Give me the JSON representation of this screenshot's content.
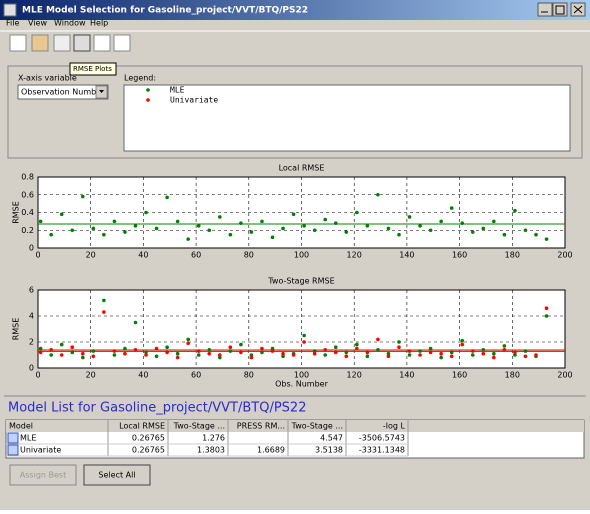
{
  "window": {
    "title": "MLE Model Selection for Gasoline_project/VVT/BTQ/PS22",
    "menus": [
      "File",
      "View",
      "Window",
      "Help"
    ],
    "tooltip": "RMSE Plots"
  },
  "controls": {
    "x_axis_label": "X-axis variable",
    "x_axis_value": "Observation Number",
    "legend_label": "Legend:"
  },
  "chart_data": [
    {
      "type": "scatter",
      "title": "Local RMSE",
      "ylabel": "RMSE",
      "xlim": [
        0,
        200
      ],
      "xticks": [
        0,
        20,
        40,
        60,
        80,
        100,
        120,
        140,
        160,
        180,
        200
      ],
      "ylim": [
        0,
        0.8
      ],
      "yticks": [
        0,
        0.2,
        0.4,
        0.6,
        0.8
      ],
      "grid": true,
      "reference_lines": [
        {
          "value": 0.27,
          "color": "#008000"
        }
      ],
      "x": [
        1,
        5,
        9,
        13,
        17,
        21,
        25,
        29,
        33,
        37,
        41,
        45,
        49,
        53,
        57,
        61,
        65,
        69,
        73,
        77,
        81,
        85,
        89,
        93,
        97,
        101,
        105,
        109,
        113,
        117,
        121,
        125,
        129,
        133,
        137,
        141,
        145,
        149,
        153,
        157,
        161,
        165,
        169,
        173,
        177,
        181,
        185,
        189,
        193
      ],
      "series": [
        {
          "name": "MLE",
          "color": "#008000",
          "values": [
            0.3,
            0.15,
            0.38,
            0.2,
            0.58,
            0.22,
            0.15,
            0.3,
            0.18,
            0.25,
            0.4,
            0.22,
            0.57,
            0.3,
            0.1,
            0.25,
            0.2,
            0.35,
            0.15,
            0.28,
            0.18,
            0.3,
            0.12,
            0.22,
            0.38,
            0.25,
            0.2,
            0.32,
            0.28,
            0.18,
            0.4,
            0.25,
            0.6,
            0.22,
            0.15,
            0.35,
            0.25,
            0.2,
            0.3,
            0.45,
            0.28,
            0.18,
            0.22,
            0.3,
            0.15,
            0.42,
            0.2,
            0.15,
            0.1
          ]
        }
      ]
    },
    {
      "type": "scatter",
      "title": "Two-Stage RMSE",
      "ylabel": "RMSE",
      "xlabel": "Obs. Number",
      "xlim": [
        0,
        200
      ],
      "xticks": [
        0,
        20,
        40,
        60,
        80,
        100,
        120,
        140,
        160,
        180,
        200
      ],
      "ylim": [
        0,
        6
      ],
      "yticks": [
        0,
        2,
        4,
        6
      ],
      "grid": true,
      "reference_lines": [
        {
          "value": 1.276,
          "color": "#008000"
        },
        {
          "value": 1.3803,
          "color": "#ff0000"
        }
      ],
      "x": [
        1,
        5,
        9,
        13,
        17,
        21,
        25,
        29,
        33,
        37,
        41,
        45,
        49,
        53,
        57,
        61,
        65,
        69,
        73,
        77,
        81,
        85,
        89,
        93,
        97,
        101,
        105,
        109,
        113,
        117,
        121,
        125,
        129,
        133,
        137,
        141,
        145,
        149,
        153,
        157,
        161,
        165,
        169,
        173,
        177,
        181,
        185,
        189,
        193
      ],
      "series": [
        {
          "name": "MLE",
          "color": "#008000",
          "values": [
            1.5,
            1.0,
            1.8,
            1.2,
            0.8,
            1.3,
            5.2,
            1.0,
            1.5,
            3.5,
            1.2,
            0.9,
            1.6,
            1.1,
            2.2,
            1.0,
            1.4,
            0.8,
            1.3,
            1.8,
            1.0,
            1.2,
            1.5,
            0.9,
            1.1,
            2.5,
            1.3,
            1.0,
            1.6,
            1.2,
            1.8,
            0.9,
            1.4,
            1.1,
            2.0,
            1.0,
            1.3,
            1.5,
            0.8,
            1.2,
            2.1,
            1.0,
            1.4,
            1.1,
            1.7,
            1.0,
            1.3,
            0.9,
            4.0
          ]
        },
        {
          "name": "Univariate",
          "color": "#ff0000",
          "values": [
            1.2,
            1.4,
            1.0,
            1.6,
            1.1,
            0.9,
            4.3,
            1.3,
            1.1,
            1.4,
            1.0,
            1.5,
            1.2,
            0.8,
            1.9,
            1.3,
            1.1,
            1.0,
            1.6,
            1.2,
            0.8,
            1.5,
            1.3,
            1.1,
            1.0,
            2.0,
            1.1,
            1.4,
            1.2,
            0.9,
            1.5,
            1.2,
            2.2,
            0.9,
            1.6,
            1.3,
            1.0,
            1.2,
            1.1,
            0.9,
            1.8,
            1.3,
            1.1,
            0.8,
            1.4,
            1.2,
            0.9,
            1.0,
            4.6
          ]
        }
      ]
    }
  ],
  "model_list": {
    "title": "Model List for Gasoline_project/VVT/BTQ/PS22",
    "columns": [
      "Model",
      "Local RMSE",
      "Two-Stage ...",
      "PRESS RM...",
      "Two-Stage ...",
      "-log L"
    ],
    "rows": [
      [
        "MLE",
        "0.26765",
        "1.276",
        null,
        "4.547",
        "-3506.5743"
      ],
      [
        "Univariate",
        "0.26765",
        "1.3803",
        "1.6689",
        "3.5138",
        "-3331.1348"
      ]
    ]
  },
  "buttons": [
    "Assign Best",
    "Select All"
  ]
}
